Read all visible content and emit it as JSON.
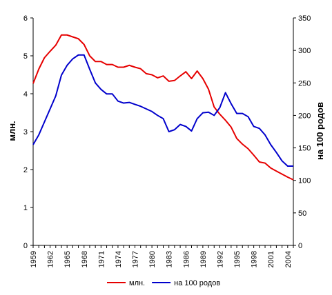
{
  "chart_data": {
    "type": "line",
    "title": "",
    "x": [
      1959,
      1960,
      1961,
      1962,
      1963,
      1964,
      1965,
      1966,
      1967,
      1968,
      1969,
      1970,
      1971,
      1972,
      1973,
      1974,
      1975,
      1976,
      1977,
      1978,
      1979,
      1980,
      1981,
      1982,
      1983,
      1984,
      1985,
      1986,
      1987,
      1988,
      1989,
      1990,
      1991,
      1992,
      1993,
      1994,
      1995,
      1996,
      1997,
      1998,
      1999,
      2000,
      2001,
      2002,
      2003,
      2004,
      2005
    ],
    "x_tick_labels": [
      "1959",
      "1962",
      "1965",
      "1968",
      "1971",
      "1974",
      "1977",
      "1980",
      "1983",
      "1986",
      "1989",
      "1992",
      "1995",
      "1998",
      "2001",
      "2004"
    ],
    "xlim": [
      1959,
      2005
    ],
    "ylabel_left": "млн.",
    "ylim_left": [
      0,
      6
    ],
    "yticks_left": [
      "0",
      "1",
      "2",
      "3",
      "4",
      "5",
      "6"
    ],
    "ylabel_right": "на 100 родов",
    "ylim_right": [
      0,
      350
    ],
    "yticks_right": [
      "0",
      "50",
      "100",
      "150",
      "200",
      "250",
      "300",
      "350"
    ],
    "grid": false,
    "legend_position": "bottom-center",
    "series": [
      {
        "name": "млн.",
        "axis": "left",
        "color": "#e60000",
        "values": [
          4.27,
          4.65,
          4.95,
          5.12,
          5.28,
          5.55,
          5.55,
          5.5,
          5.45,
          5.3,
          5.0,
          4.85,
          4.85,
          4.77,
          4.77,
          4.7,
          4.7,
          4.75,
          4.7,
          4.66,
          4.53,
          4.5,
          4.42,
          4.47,
          4.33,
          4.35,
          4.47,
          4.58,
          4.4,
          4.6,
          4.4,
          4.12,
          3.65,
          3.46,
          3.3,
          3.12,
          2.82,
          2.67,
          2.55,
          2.38,
          2.2,
          2.17,
          2.04,
          1.96,
          1.88,
          1.8,
          1.73
        ]
      },
      {
        "name": "на 100 родов",
        "axis": "right",
        "color": "#0000cc",
        "values": [
          155,
          170,
          190,
          210,
          230,
          262,
          277,
          287,
          293,
          293,
          271,
          250,
          240,
          233,
          233,
          222,
          219,
          220,
          217,
          214,
          210,
          206,
          200,
          195,
          175,
          178,
          186,
          183,
          176,
          195,
          204,
          205,
          200,
          212,
          235,
          218,
          203,
          203,
          198,
          183,
          180,
          170,
          155,
          143,
          130,
          122,
          122
        ]
      }
    ]
  }
}
